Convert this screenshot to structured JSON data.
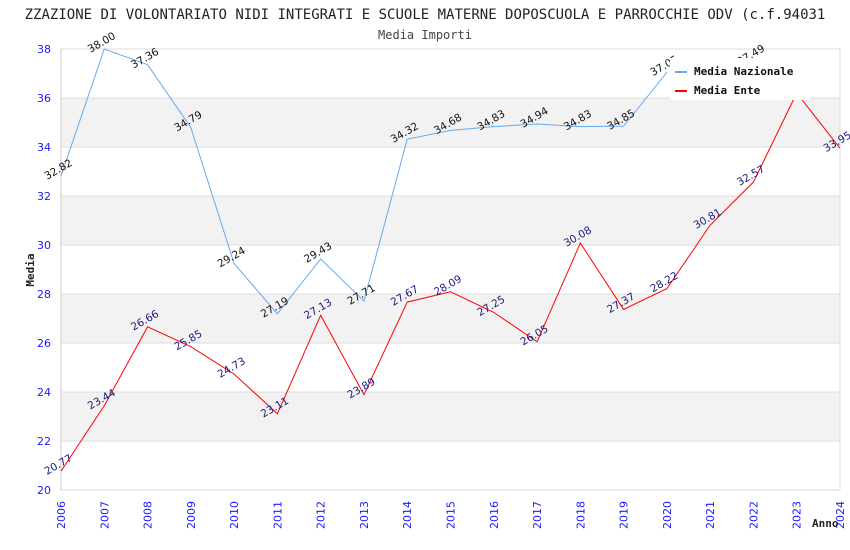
{
  "chart_data": {
    "type": "line",
    "title": "ZZAZIONE DI VOLONTARIATO NIDI INTEGRATI E SCUOLE MATERNE DOPOSCUOLA E PARROCCHIE ODV (c.f.94031",
    "subtitle": "Media Importi",
    "xlabel": "Anno",
    "ylabel": "Media",
    "ylim": [
      20,
      38
    ],
    "yticks": [
      "20",
      "22",
      "24",
      "26",
      "28",
      "30",
      "32",
      "34",
      "36",
      "38"
    ],
    "x": [
      "2006",
      "2007",
      "2008",
      "2009",
      "2010",
      "2011",
      "2012",
      "2013",
      "2014",
      "2015",
      "2016",
      "2017",
      "2018",
      "2019",
      "2020",
      "2021",
      "2022",
      "2023",
      "2024"
    ],
    "legend": "top-right",
    "series": [
      {
        "name": "Media Nazionale",
        "color": "#66aaee",
        "values": [
          32.82,
          38.0,
          37.36,
          34.79,
          29.24,
          27.19,
          29.43,
          27.71,
          34.32,
          34.68,
          34.83,
          34.94,
          34.83,
          34.85,
          37.05,
          null,
          37.49,
          null,
          null
        ],
        "labels": [
          "32.82",
          "38.00",
          "37.36",
          "34.79",
          "29.24",
          "27.19",
          "29.43",
          "27.71",
          "34.32",
          "34.68",
          "34.83",
          "34.94",
          "34.83",
          "34.85",
          "37.05",
          "",
          "37.49",
          "",
          ""
        ]
      },
      {
        "name": "Media Ente",
        "color": "#ff0000",
        "values": [
          20.77,
          23.44,
          26.66,
          25.85,
          24.73,
          23.11,
          27.13,
          23.89,
          27.67,
          28.09,
          27.25,
          26.05,
          30.08,
          27.37,
          28.22,
          30.81,
          32.57,
          36.2,
          33.95
        ],
        "labels": [
          "20.77",
          "23.44",
          "26.66",
          "25.85",
          "24.73",
          "23.11",
          "27.13",
          "23.89",
          "27.67",
          "28.09",
          "27.25",
          "26.05",
          "30.08",
          "27.37",
          "28.22",
          "30.81",
          "32.57",
          "",
          "33.95"
        ]
      }
    ]
  }
}
